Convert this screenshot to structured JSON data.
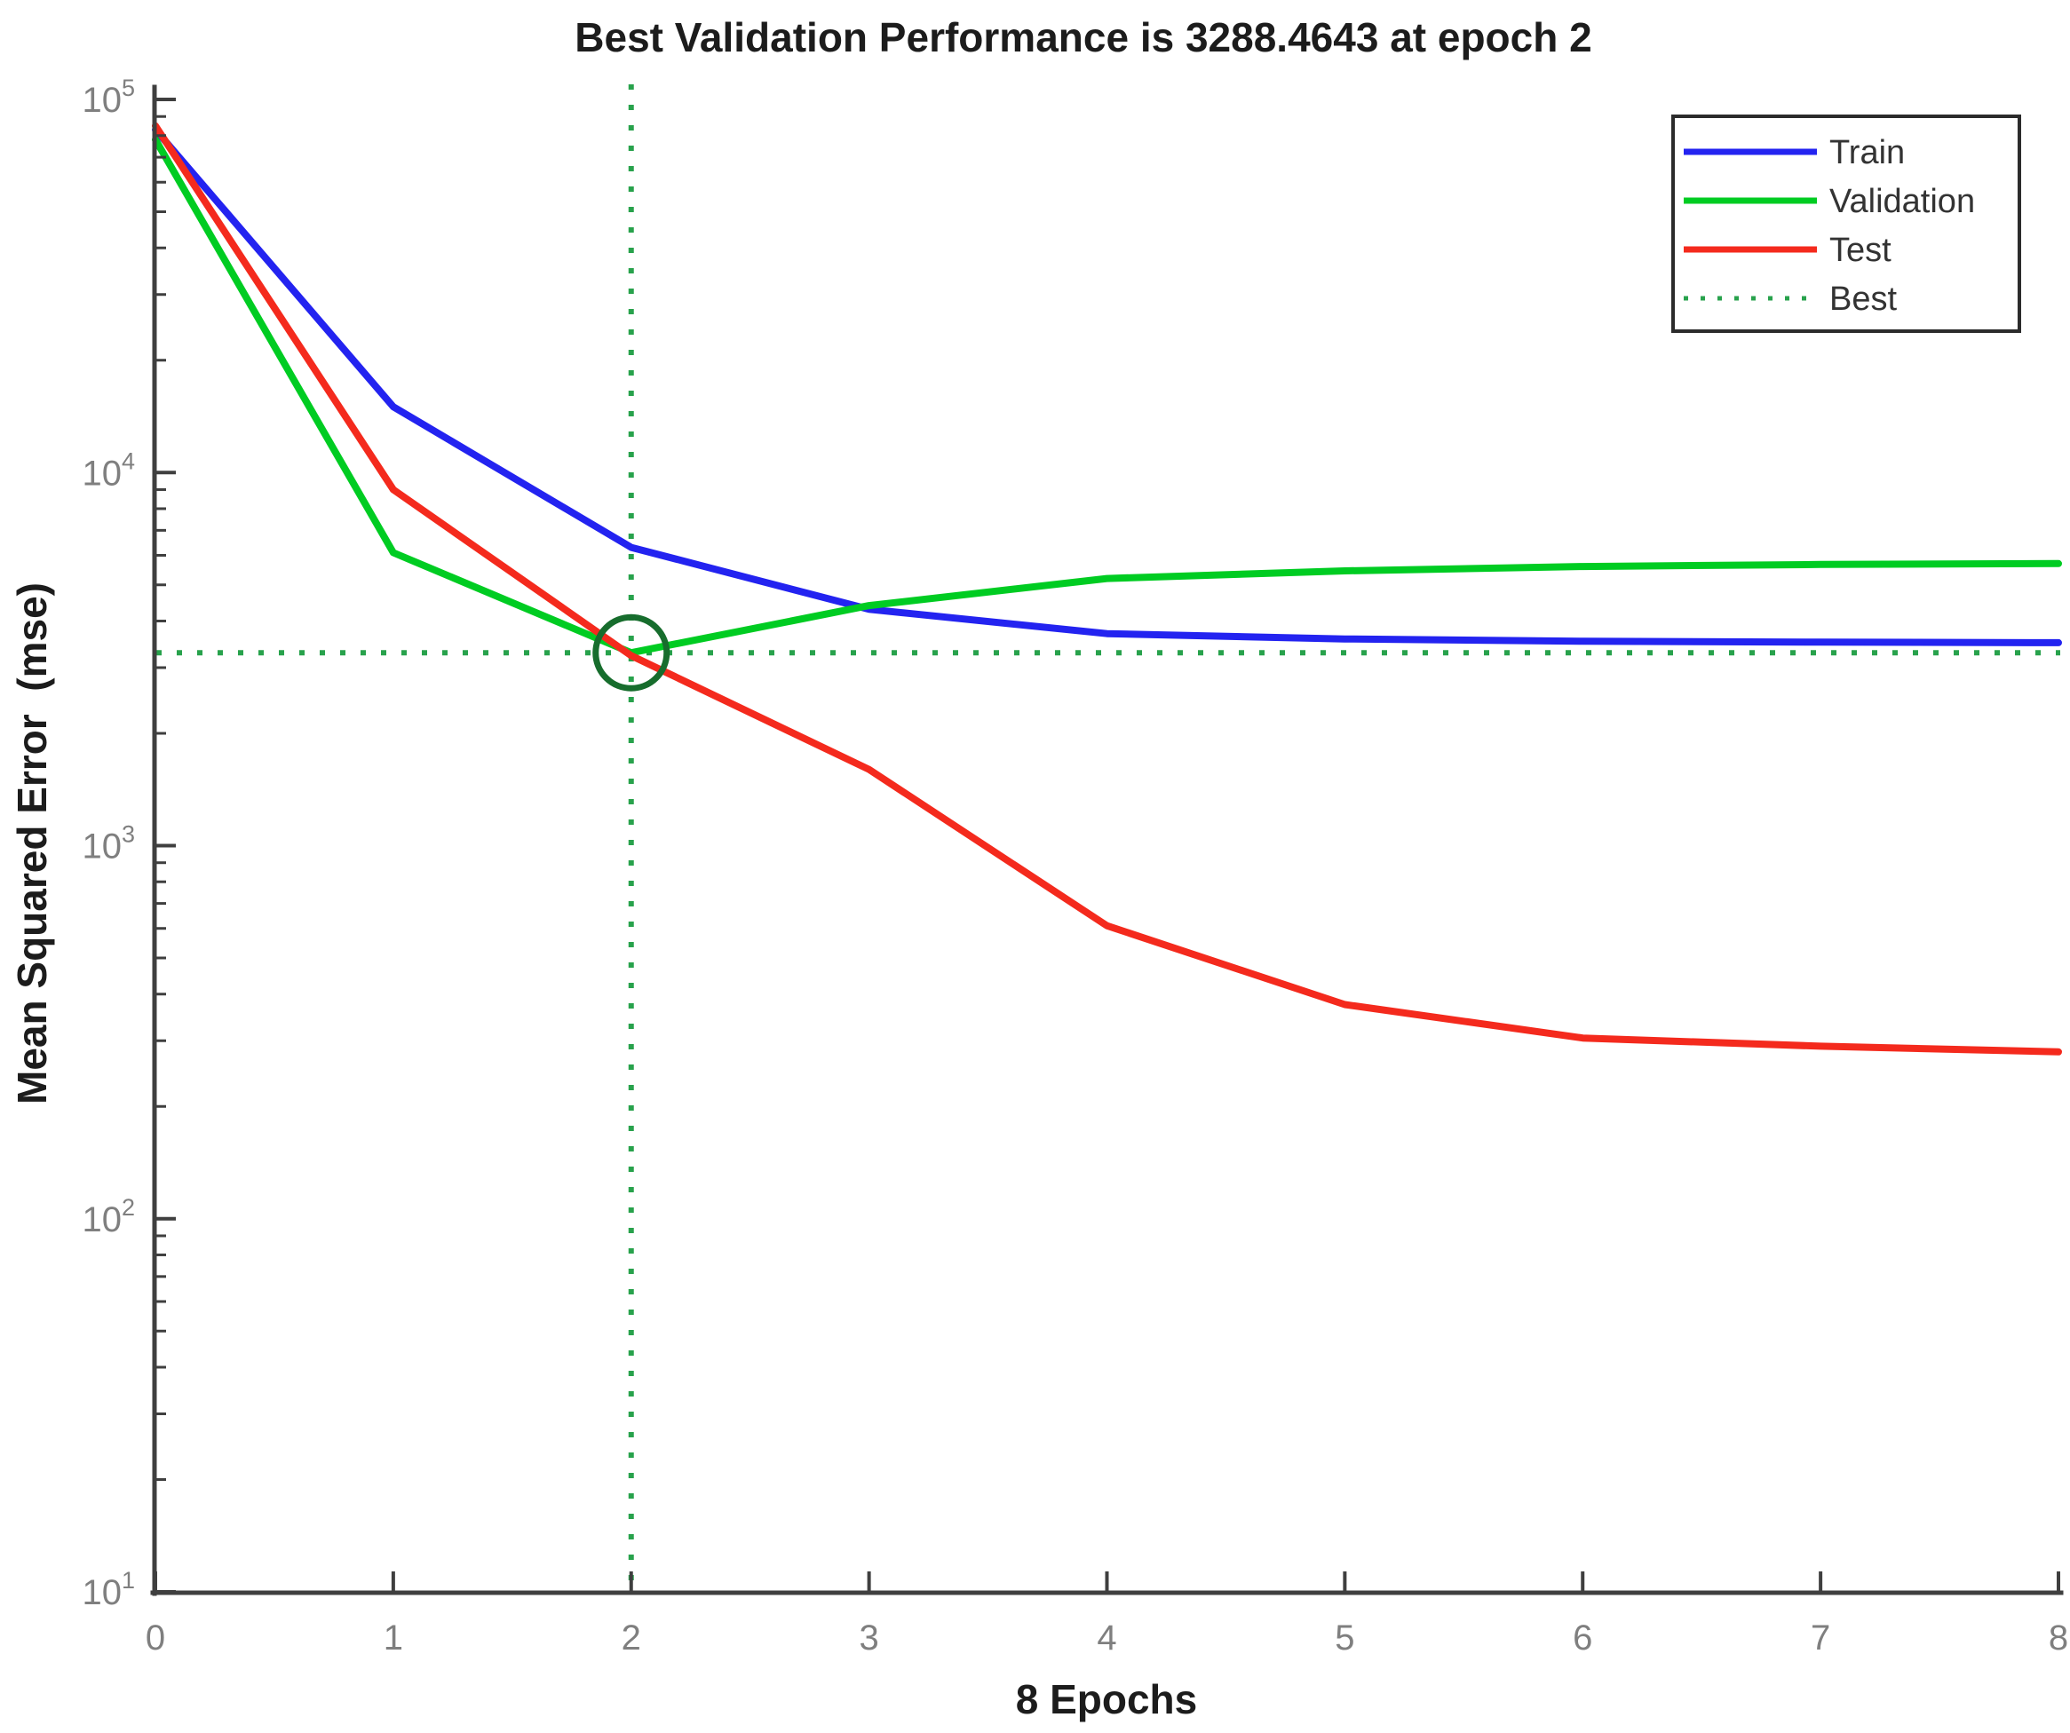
{
  "figure": {
    "background": "#ffffff"
  },
  "chart_data": {
    "type": "line",
    "title": "Best Validation Performance is 3288.4643 at epoch 2",
    "xlabel": "8 Epochs",
    "ylabel": "Mean Squared Error  (mse)",
    "yscale": "log",
    "xlim": [
      0,
      8
    ],
    "ylim": [
      10,
      100000
    ],
    "x_ticks": [
      0,
      1,
      2,
      3,
      4,
      5,
      6,
      7,
      8
    ],
    "y_tick_base": "10",
    "y_tick_exponents": [
      1,
      2,
      3,
      4,
      5
    ],
    "grid": false,
    "legend_position": "top-right",
    "x": [
      0,
      1,
      2,
      3,
      4,
      5,
      6,
      7,
      8
    ],
    "series": [
      {
        "name": "Train",
        "color": "#2323f0",
        "values": [
          83000,
          15000,
          6300,
          4300,
          3700,
          3580,
          3530,
          3510,
          3500
        ]
      },
      {
        "name": "Validation",
        "color": "#00cc22",
        "values": [
          78000,
          6100,
          3288.4643,
          4400,
          5200,
          5450,
          5600,
          5670,
          5700
        ]
      },
      {
        "name": "Test",
        "color": "#f42a1d",
        "values": [
          85000,
          9000,
          3230,
          1600,
          610,
          375,
          305,
          290,
          280
        ]
      }
    ],
    "best": {
      "label": "Best",
      "epoch": 2,
      "value": 3288.4643,
      "line_color": "#28a24c",
      "marker_color": "#176d2d"
    }
  },
  "colors": {
    "axis": "#3f3f3f",
    "tick_label": "#7f7f7f",
    "text": "#1c1c1c",
    "legend_border": "#2b2b2b",
    "legend_background": "#ffffff"
  }
}
